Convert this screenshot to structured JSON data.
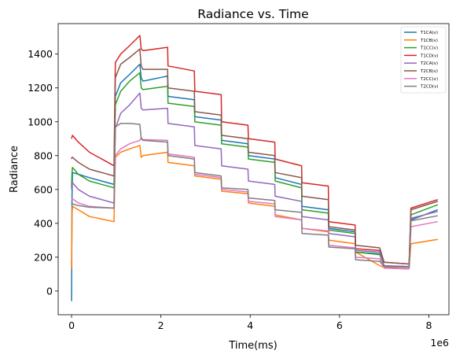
{
  "chart_data": {
    "type": "line",
    "title": "Radiance vs. Time",
    "xlabel": "Time(ms)",
    "ylabel": "Radiance",
    "x_offset_label": "1e6",
    "xlim": [
      -300000,
      8450000
    ],
    "ylim": [
      -140,
      1580
    ],
    "x_ticks": [
      0,
      2000000,
      4000000,
      6000000,
      8000000
    ],
    "x_tick_labels": [
      "0",
      "2",
      "4",
      "6",
      "8"
    ],
    "y_ticks": [
      0,
      200,
      400,
      600,
      800,
      1000,
      1200,
      1400
    ],
    "y_tick_labels": [
      "0",
      "200",
      "400",
      "600",
      "800",
      "1000",
      "1200",
      "1400"
    ],
    "grid": false,
    "legend_position": "top-right",
    "series": [
      {
        "name": "T1CA(v)",
        "color": "#1f77b4",
        "x": [
          0,
          10000,
          20000,
          150000,
          400000,
          950000,
          980000,
          1100000,
          1300000,
          1530000,
          1560000,
          1600000,
          2150000,
          2160000,
          2750000,
          2760000,
          3350000,
          3360000,
          3950000,
          3960000,
          4550000,
          4560000,
          5150000,
          5160000,
          5750000,
          5760000,
          6350000,
          6360000,
          6900000,
          7000000,
          7550000,
          7560000,
          7600000,
          8200000
        ],
        "y": [
          -60,
          560,
          700,
          690,
          670,
          630,
          1150,
          1230,
          1280,
          1340,
          1260,
          1240,
          1270,
          1150,
          1130,
          1030,
          1010,
          890,
          870,
          800,
          780,
          670,
          630,
          500,
          480,
          370,
          350,
          230,
          220,
          150,
          140,
          150,
          420,
          480
        ]
      },
      {
        "name": "T1CB(v)",
        "color": "#ff7f0e",
        "x": [
          0,
          10000,
          20000,
          150000,
          400000,
          950000,
          980000,
          1100000,
          1300000,
          1530000,
          1560000,
          1600000,
          2150000,
          2160000,
          2750000,
          2760000,
          3350000,
          3360000,
          3950000,
          3960000,
          4550000,
          4560000,
          5150000,
          5160000,
          5750000,
          5760000,
          6350000,
          6360000,
          6900000,
          7000000,
          7550000,
          7560000,
          7600000,
          8200000
        ],
        "y": [
          130,
          450,
          500,
          480,
          440,
          410,
          790,
          820,
          840,
          860,
          790,
          800,
          820,
          760,
          740,
          680,
          660,
          590,
          575,
          520,
          500,
          450,
          420,
          370,
          350,
          300,
          280,
          230,
          150,
          140,
          130,
          135,
          280,
          305
        ]
      },
      {
        "name": "T1CC(v)",
        "color": "#2ca02c",
        "x": [
          0,
          10000,
          20000,
          150000,
          400000,
          950000,
          980000,
          1100000,
          1300000,
          1530000,
          1560000,
          1600000,
          2150000,
          2160000,
          2750000,
          2760000,
          3350000,
          3360000,
          3950000,
          3960000,
          4550000,
          4560000,
          5150000,
          5160000,
          5750000,
          5760000,
          6350000,
          6360000,
          6900000,
          7000000,
          7550000,
          7560000,
          7600000,
          8200000
        ],
        "y": [
          610,
          700,
          730,
          690,
          650,
          610,
          1100,
          1180,
          1240,
          1290,
          1200,
          1190,
          1210,
          1110,
          1090,
          1000,
          980,
          870,
          850,
          780,
          760,
          650,
          610,
          480,
          460,
          360,
          340,
          230,
          215,
          150,
          140,
          150,
          450,
          510
        ]
      },
      {
        "name": "T1CD(v)",
        "color": "#d62728",
        "x": [
          0,
          10000,
          20000,
          150000,
          400000,
          950000,
          980000,
          1100000,
          1300000,
          1530000,
          1560000,
          1600000,
          2150000,
          2160000,
          2750000,
          2760000,
          3350000,
          3360000,
          3950000,
          3960000,
          4550000,
          4560000,
          5150000,
          5160000,
          5750000,
          5760000,
          6350000,
          6360000,
          6900000,
          7000000,
          7550000,
          7560000,
          7600000,
          8200000
        ],
        "y": [
          900,
          910,
          920,
          880,
          820,
          740,
          1350,
          1400,
          1450,
          1510,
          1430,
          1420,
          1440,
          1330,
          1300,
          1180,
          1160,
          1000,
          980,
          900,
          880,
          780,
          740,
          640,
          620,
          410,
          390,
          250,
          240,
          170,
          160,
          170,
          490,
          540
        ]
      },
      {
        "name": "T2CA(v)",
        "color": "#9467bd",
        "x": [
          0,
          10000,
          20000,
          150000,
          400000,
          950000,
          980000,
          1100000,
          1300000,
          1530000,
          1560000,
          1600000,
          2150000,
          2160000,
          2750000,
          2760000,
          3350000,
          3360000,
          3950000,
          3960000,
          4550000,
          4560000,
          5150000,
          5160000,
          5750000,
          5760000,
          6350000,
          6360000,
          6900000,
          7000000,
          7550000,
          7560000,
          7600000,
          8200000
        ],
        "y": [
          600,
          620,
          640,
          600,
          560,
          520,
          960,
          1050,
          1100,
          1170,
          1080,
          1070,
          1080,
          990,
          970,
          860,
          840,
          740,
          720,
          650,
          630,
          560,
          530,
          440,
          420,
          340,
          320,
          240,
          230,
          150,
          145,
          150,
          430,
          470
        ]
      },
      {
        "name": "T2CB(v)",
        "color": "#8c564b",
        "x": [
          0,
          10000,
          20000,
          150000,
          400000,
          950000,
          980000,
          1100000,
          1300000,
          1530000,
          1560000,
          1600000,
          2150000,
          2160000,
          2750000,
          2760000,
          3350000,
          3360000,
          3950000,
          3960000,
          4550000,
          4560000,
          5150000,
          5160000,
          5750000,
          5760000,
          6350000,
          6360000,
          6900000,
          7000000,
          7550000,
          7560000,
          7600000,
          8200000
        ],
        "y": [
          780,
          790,
          790,
          760,
          720,
          680,
          1260,
          1340,
          1380,
          1430,
          1330,
          1310,
          1310,
          1200,
          1180,
          1060,
          1040,
          920,
          900,
          820,
          800,
          700,
          670,
          560,
          540,
          380,
          360,
          270,
          255,
          170,
          160,
          170,
          480,
          530
        ]
      },
      {
        "name": "T2CC(v)",
        "color": "#e377c2",
        "x": [
          0,
          10000,
          20000,
          150000,
          400000,
          950000,
          980000,
          1100000,
          1300000,
          1530000,
          1560000,
          1600000,
          2150000,
          2160000,
          2750000,
          2760000,
          3350000,
          3360000,
          3950000,
          3960000,
          4550000,
          4560000,
          5150000,
          5160000,
          5750000,
          5760000,
          6350000,
          6360000,
          6900000,
          7000000,
          7550000,
          7560000,
          7600000,
          8200000
        ],
        "y": [
          540,
          545,
          545,
          520,
          500,
          490,
          800,
          840,
          870,
          890,
          905,
          895,
          890,
          810,
          790,
          690,
          670,
          600,
          585,
          530,
          515,
          440,
          420,
          370,
          355,
          270,
          255,
          200,
          190,
          135,
          130,
          135,
          380,
          410
        ]
      },
      {
        "name": "T2CD(v)",
        "color": "#7f7f7f",
        "x": [
          0,
          10000,
          20000,
          150000,
          400000,
          950000,
          980000,
          1100000,
          1300000,
          1530000,
          1560000,
          1600000,
          2150000,
          2160000,
          2750000,
          2760000,
          3350000,
          3360000,
          3950000,
          3960000,
          4550000,
          4560000,
          5150000,
          5160000,
          5750000,
          5760000,
          6350000,
          6360000,
          6900000,
          7000000,
          7550000,
          7560000,
          7600000,
          8200000
        ],
        "y": [
          510,
          515,
          515,
          505,
          495,
          490,
          970,
          990,
          990,
          985,
          900,
          890,
          880,
          800,
          780,
          700,
          680,
          610,
          600,
          550,
          535,
          480,
          465,
          340,
          330,
          260,
          250,
          185,
          175,
          145,
          140,
          145,
          415,
          445
        ]
      }
    ]
  }
}
